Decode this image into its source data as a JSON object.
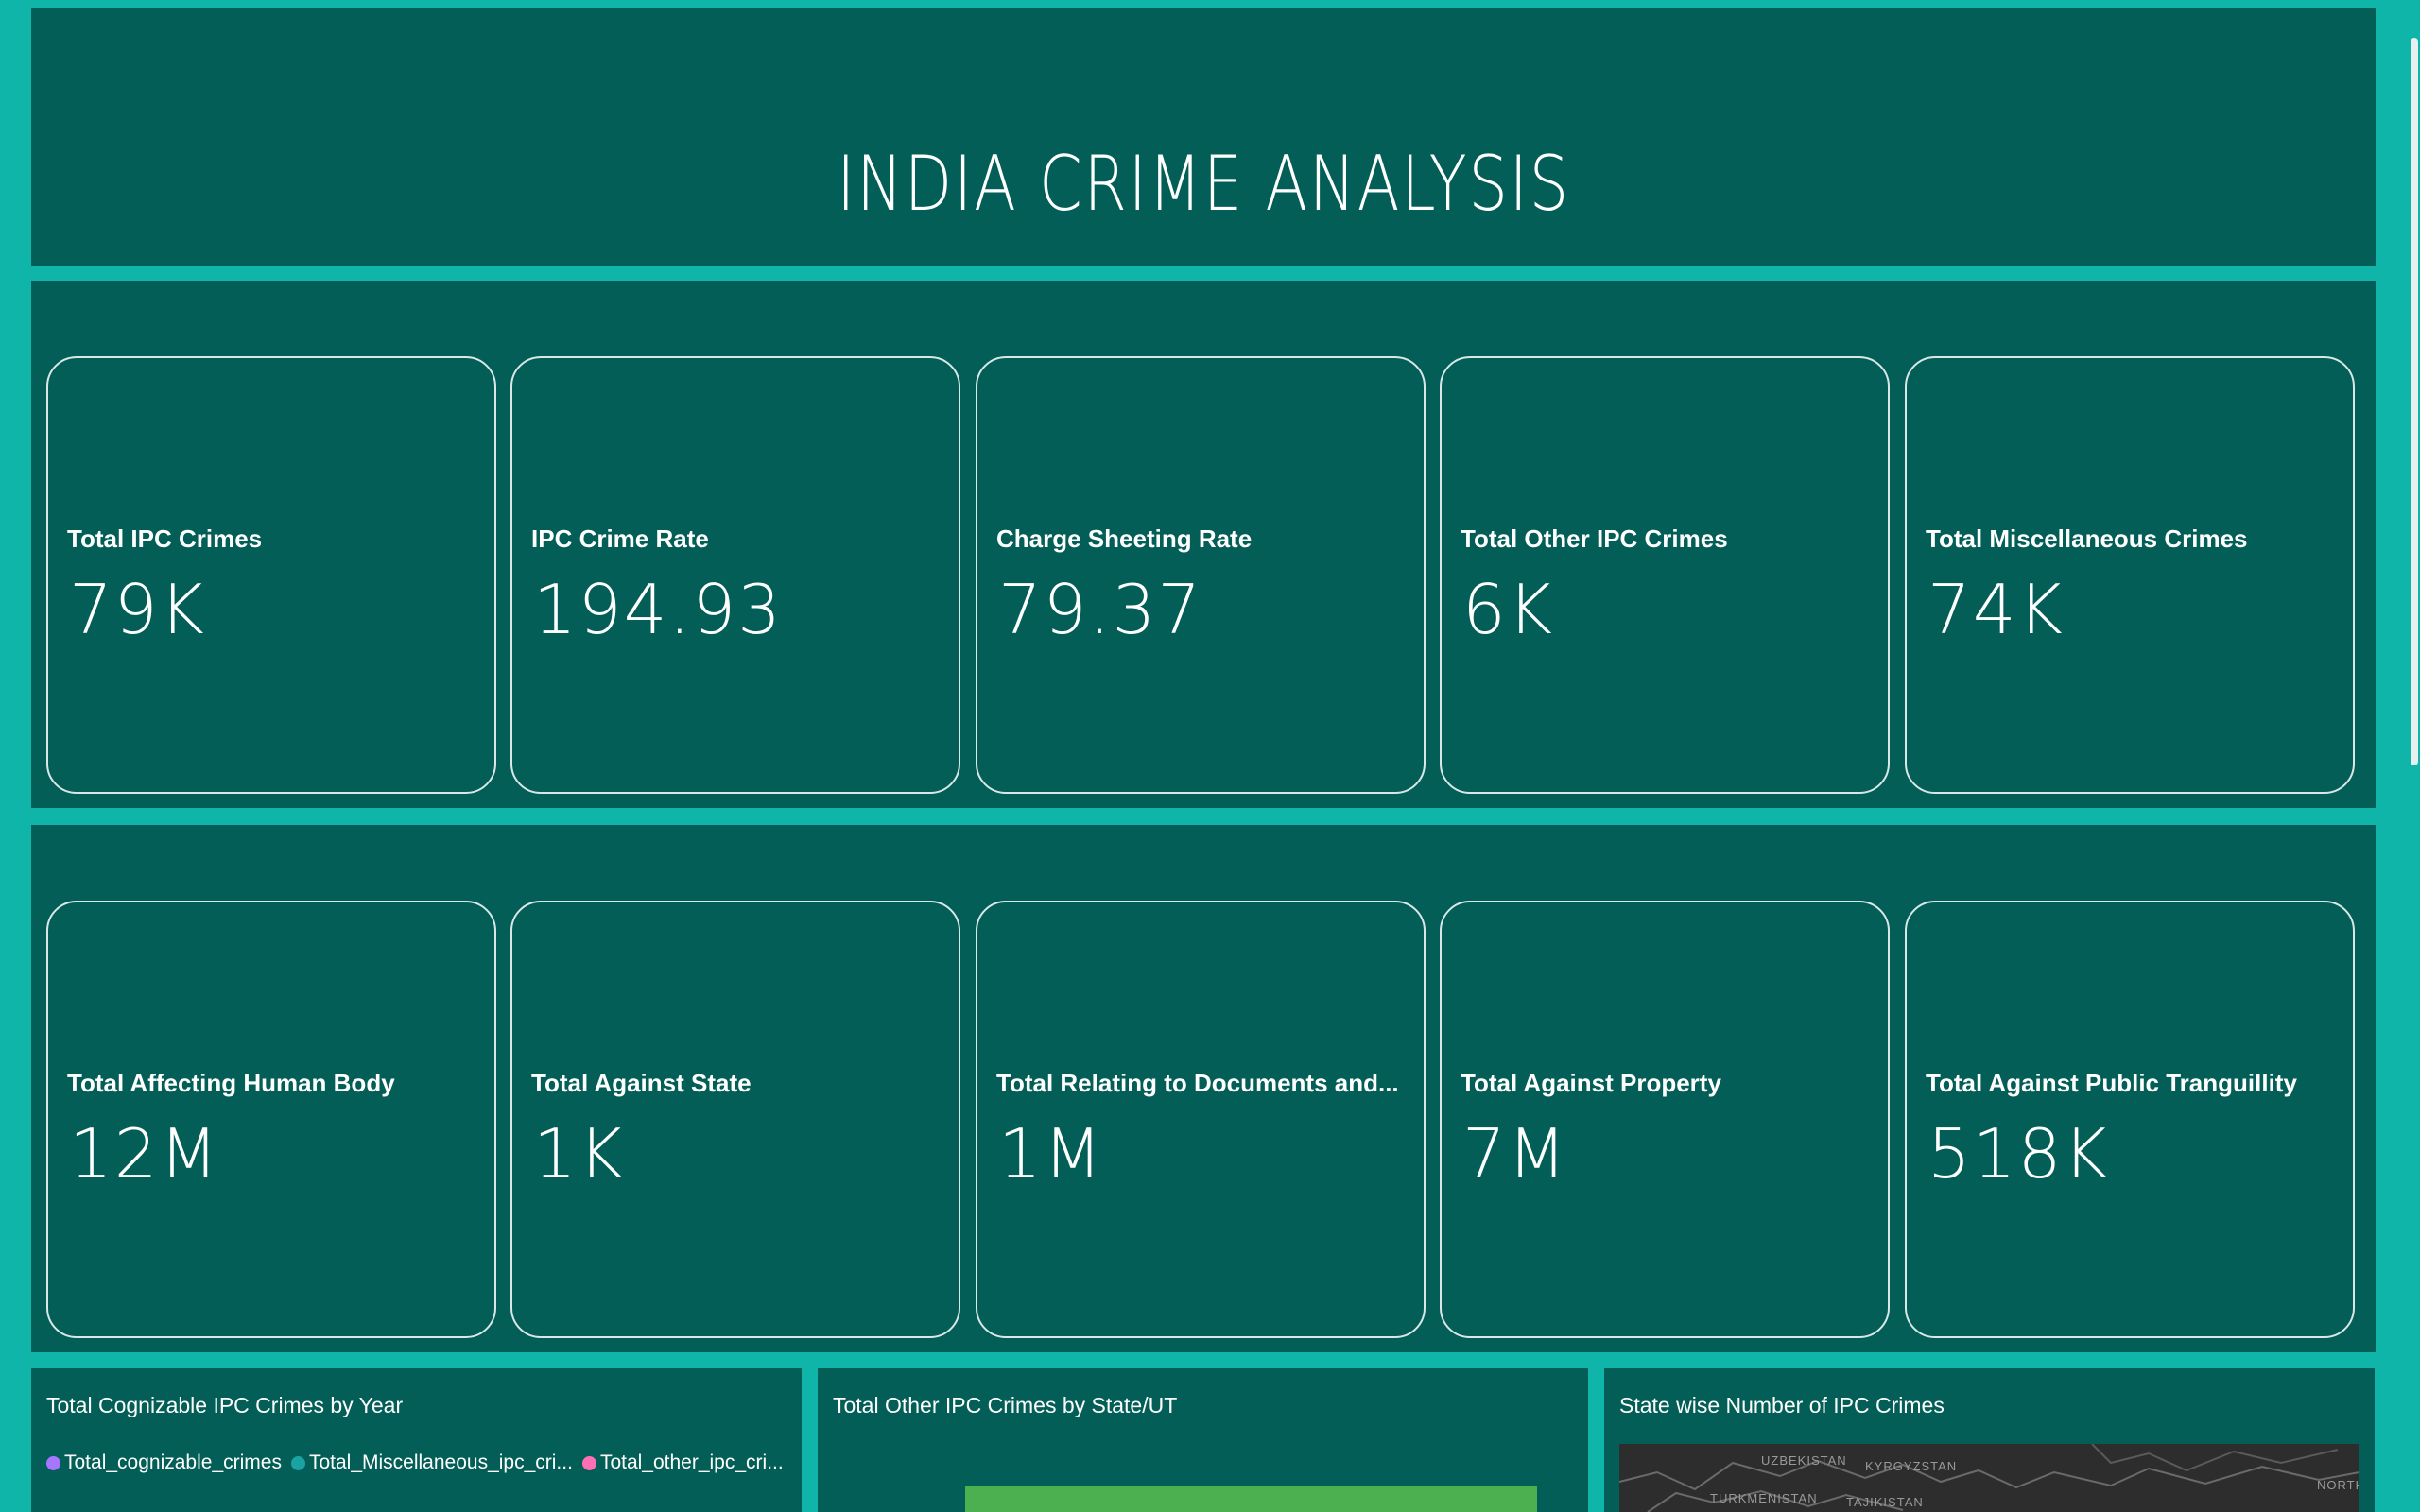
{
  "header": {
    "title": "INDIA CRIME ANALYSIS"
  },
  "kpi_row1": [
    {
      "label": "Total IPC Crimes",
      "value": "79K"
    },
    {
      "label": "IPC Crime Rate",
      "value": "194.93"
    },
    {
      "label": "Charge Sheeting Rate",
      "value": "79.37"
    },
    {
      "label": "Total Other IPC Crimes",
      "value": "6K"
    },
    {
      "label": "Total Miscellaneous Crimes",
      "value": "74K"
    }
  ],
  "kpi_row2": [
    {
      "label": "Total Affecting Human Body",
      "value": "12M"
    },
    {
      "label": "Total Against State",
      "value": "1K"
    },
    {
      "label": "Total Relating to Documents and...",
      "value": "1M"
    },
    {
      "label": "Total Against Property",
      "value": "7M"
    },
    {
      "label": "Total Against Public Tranguillity",
      "value": "518K"
    }
  ],
  "bottom": {
    "chart1": {
      "title": "Total Cognizable IPC Crimes by Year",
      "legend": [
        {
          "name": "Total_cognizable_crimes",
          "color": "#a875ff"
        },
        {
          "name": "Total_Miscellaneous_ipc_cri...",
          "color": "#1aa3a3"
        },
        {
          "name": "Total_other_ipc_cri...",
          "color": "#ff6fb5"
        }
      ]
    },
    "chart2": {
      "title": "Total Other IPC Crimes by State/UT",
      "bar_color": "#4caf50"
    },
    "chart3": {
      "title": "State wise Number of IPC Crimes",
      "map_labels": [
        "UZBEKISTAN",
        "KYRGYZSTAN",
        "TURKMENISTAN",
        "TAJIKISTAN",
        "NORTH"
      ]
    }
  },
  "colors": {
    "background": "#0eb5a8",
    "panel": "#025e56",
    "card_border": "#d9e8e6",
    "text": "#ffffff"
  }
}
